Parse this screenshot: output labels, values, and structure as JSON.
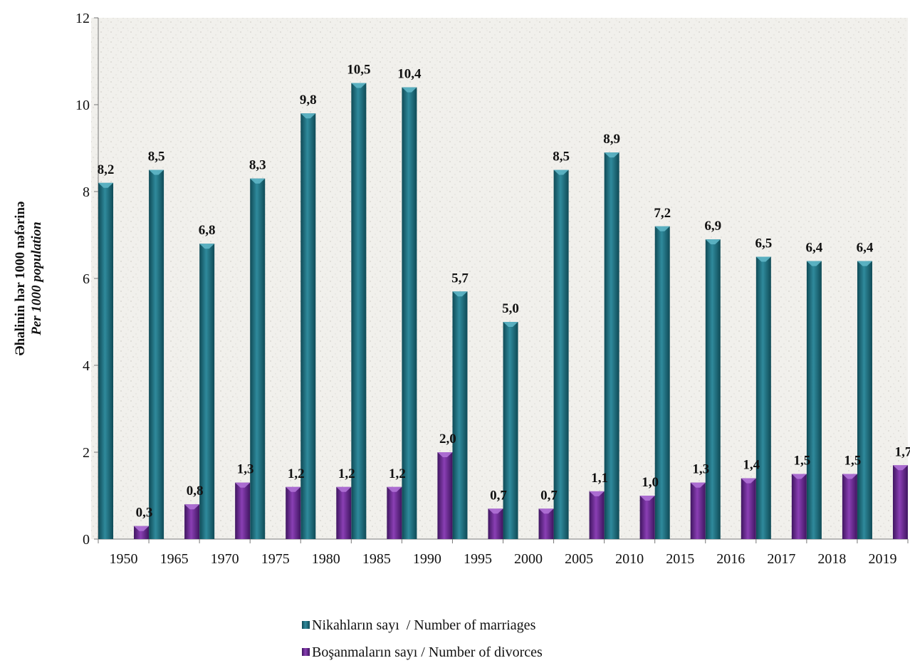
{
  "chart_data": {
    "type": "bar",
    "categories": [
      "1950",
      "1965",
      "1970",
      "1975",
      "1980",
      "1985",
      "1990",
      "1995",
      "2000",
      "2005",
      "2010",
      "2015",
      "2016",
      "2017",
      "2018",
      "2019"
    ],
    "series": [
      {
        "name": "Nikahların sayı  / Number of marriages",
        "color": "#1f6f7f",
        "values": [
          8.2,
          8.5,
          6.8,
          8.3,
          9.8,
          10.5,
          10.4,
          5.7,
          5.0,
          8.5,
          8.9,
          7.2,
          6.9,
          6.5,
          6.4,
          6.4
        ],
        "labels": [
          "8,2",
          "8,5",
          "6,8",
          "8,3",
          "9,8",
          "10,5",
          "10,4",
          "5,7",
          "5,0",
          "8,5",
          "8,9",
          "7,2",
          "6,9",
          "6,5",
          "6,4",
          "6,4"
        ]
      },
      {
        "name": "Boşanmaların sayı / Number of divorces",
        "color": "#6a2a8e",
        "values": [
          0.3,
          0.8,
          1.3,
          1.2,
          1.2,
          1.2,
          2.0,
          0.7,
          0.7,
          1.1,
          1.0,
          1.3,
          1.4,
          1.5,
          1.5,
          1.7
        ],
        "labels": [
          "0,3",
          "0,8",
          "1,3",
          "1,2",
          "1,2",
          "1,2",
          "2,0",
          "0,7",
          "0,7",
          "1,1",
          "1,0",
          "1,3",
          "1,4",
          "1,5",
          "1,5",
          "1,7"
        ]
      }
    ],
    "ylabel": "Əhalinin hər 1000 nəfərinə",
    "ylabel_sub": "Per 1000 population",
    "yticks": [
      "0",
      "2",
      "4",
      "6",
      "8",
      "10",
      "12"
    ],
    "ylim": [
      0,
      12
    ],
    "legend_position": "bottom-center"
  }
}
